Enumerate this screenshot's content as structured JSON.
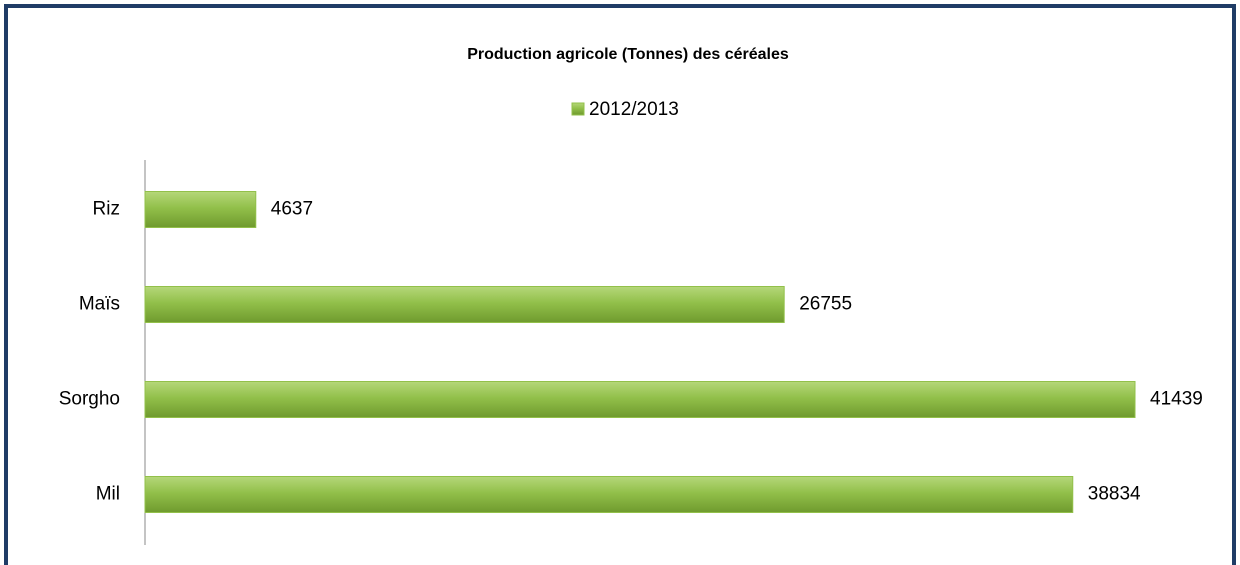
{
  "chart_data": {
    "type": "bar",
    "orientation": "horizontal",
    "title": "Production agricole (Tonnes) des céréales",
    "categories": [
      "Riz",
      "Maïs",
      "Sorgho",
      "Mil"
    ],
    "series": [
      {
        "name": "2012/2013",
        "color": "#92c04a",
        "values": [
          4637,
          26755,
          41439,
          38834
        ]
      }
    ]
  }
}
